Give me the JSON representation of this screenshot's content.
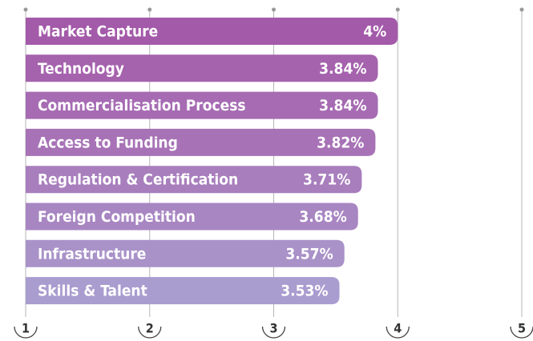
{
  "chart_data": {
    "type": "bar",
    "orientation": "horizontal",
    "categories": [
      "Market Capture",
      "Technology",
      "Commercialisation Process",
      "Access to Funding",
      "Regulation & Certification",
      "Foreign Competition",
      "Infrastructure",
      "Skills & Talent"
    ],
    "values": [
      4,
      3.84,
      3.84,
      3.82,
      3.71,
      3.68,
      3.57,
      3.53
    ],
    "value_labels": [
      "4%",
      "3.84%",
      "3.84%",
      "3.82%",
      "3.71%",
      "3.68%",
      "3.57%",
      "3.53%"
    ],
    "colors": [
      "#a35aa9",
      "#a562ad",
      "#a66bb3",
      "#a772b6",
      "#a87ebd",
      "#a886c2",
      "#a992c8",
      "#a99ccf"
    ],
    "xlim": [
      1,
      5
    ],
    "xticks": [
      1,
      2,
      3,
      4,
      5
    ],
    "grid": true
  }
}
